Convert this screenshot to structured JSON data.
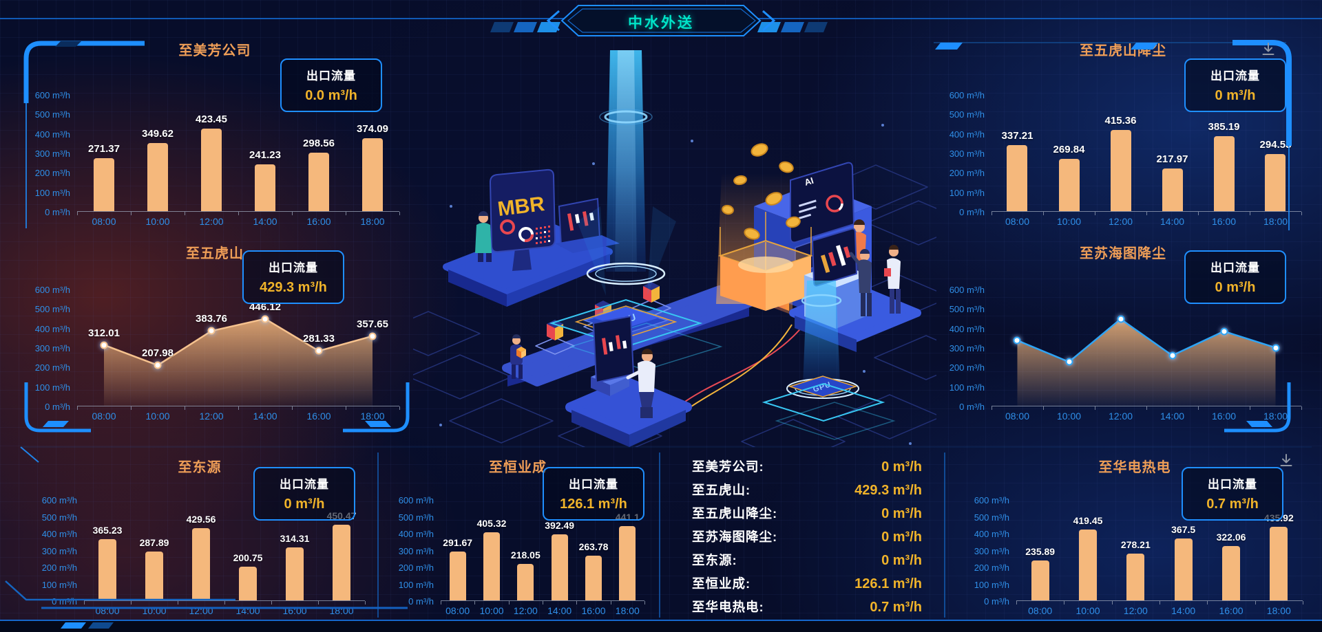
{
  "header": {
    "title": "中水外送"
  },
  "flow_box": {
    "label": "出口流量"
  },
  "axis": {
    "y_ticks": [
      "600 m³/h",
      "500 m³/h",
      "400 m³/h",
      "300 m³/h",
      "200 m³/h",
      "100 m³/h",
      "0 m³/h"
    ],
    "x_ticks": [
      "08:00",
      "10:00",
      "12:00",
      "14:00",
      "16:00",
      "18:00"
    ]
  },
  "colors": {
    "accent_blue": "#1f8fff",
    "axis_blue": "#2f8fe8",
    "bar_orange": "#f5b87c",
    "title_orange": "#ef9e57",
    "value_gold": "#f0b32a",
    "header_cyan": "#00e5c9"
  },
  "chart_data": [
    {
      "id": "meifang",
      "type": "bar",
      "title": "至美芳公司",
      "flow_value": "0.0 m³/h",
      "x": [
        "08:00",
        "10:00",
        "12:00",
        "14:00",
        "16:00",
        "18:00"
      ],
      "values": [
        271.37,
        349.62,
        423.45,
        241.23,
        298.56,
        374.09
      ],
      "ylabel": "m³/h",
      "ylim": [
        0,
        600
      ],
      "labels_shown": true
    },
    {
      "id": "wuhushan",
      "type": "area",
      "title": "至五虎山",
      "flow_value": "429.3 m³/h",
      "x": [
        "08:00",
        "10:00",
        "12:00",
        "14:00",
        "16:00",
        "18:00"
      ],
      "values": [
        312.01,
        207.98,
        383.76,
        446.12,
        281.33,
        357.65
      ],
      "ylabel": "m³/h",
      "ylim": [
        0,
        600
      ],
      "labels_shown": true,
      "line_color": "#f6c28e",
      "fill_color": "#f5b87c"
    },
    {
      "id": "wuhushan_dust",
      "type": "bar",
      "title": "至五虎山降尘",
      "flow_value": "0 m³/h",
      "x": [
        "08:00",
        "10:00",
        "12:00",
        "14:00",
        "16:00",
        "18:00"
      ],
      "values": [
        337.21,
        269.84,
        415.36,
        217.97,
        385.19,
        294.53
      ],
      "ylabel": "m³/h",
      "ylim": [
        0,
        600
      ],
      "labels_shown": true
    },
    {
      "id": "suhaitu_dust",
      "type": "area",
      "title": "至苏海图降尘",
      "flow_value": "0 m³/h",
      "x": [
        "08:00",
        "10:00",
        "12:00",
        "14:00",
        "16:00",
        "18:00"
      ],
      "values": [
        335,
        225,
        445,
        258,
        382,
        298
      ],
      "ylabel": "m³/h",
      "ylim": [
        0,
        600
      ],
      "labels_shown": false,
      "line_color": "#2ea4f5",
      "fill_color": "#f5b87c"
    },
    {
      "id": "dongyuan",
      "type": "bar",
      "title": "至东源",
      "flow_value": "0 m³/h",
      "x": [
        "08:00",
        "10:00",
        "12:00",
        "14:00",
        "16:00",
        "18:00"
      ],
      "values": [
        365.23,
        287.89,
        429.56,
        200.75,
        314.31,
        450.47
      ],
      "ylabel": "m³/h",
      "ylim": [
        0,
        600
      ],
      "labels_shown": true
    },
    {
      "id": "hengyecheng",
      "type": "bar",
      "title": "至恒业成",
      "flow_value": "126.1 m³/h",
      "x": [
        "08:00",
        "10:00",
        "12:00",
        "14:00",
        "16:00",
        "18:00"
      ],
      "values": [
        291.67,
        405.32,
        218.05,
        392.49,
        263.78,
        441.1
      ],
      "ylabel": "m³/h",
      "ylim": [
        0,
        600
      ],
      "labels_shown": true
    },
    {
      "id": "huadian",
      "type": "bar",
      "title": "至华电热电",
      "flow_value": "0.7 m³/h",
      "x": [
        "08:00",
        "10:00",
        "12:00",
        "14:00",
        "16:00",
        "18:00"
      ],
      "values": [
        235.89,
        419.45,
        278.21,
        367.5,
        322.06,
        435.92
      ],
      "ylabel": "m³/h",
      "ylim": [
        0,
        600
      ],
      "labels_shown": true
    }
  ],
  "summary": {
    "rows": [
      {
        "label": "至美芳公司:",
        "value": "0 m³/h"
      },
      {
        "label": "至五虎山:",
        "value": "429.3 m³/h"
      },
      {
        "label": "至五虎山降尘:",
        "value": "0 m³/h"
      },
      {
        "label": "至苏海图降尘:",
        "value": "0 m³/h"
      },
      {
        "label": "至东源:",
        "value": "0 m³/h"
      },
      {
        "label": "至恒业成:",
        "value": "126.1 m³/h"
      },
      {
        "label": "至华电热电:",
        "value": "0.7 m³/h"
      }
    ]
  },
  "illustration": {
    "mbr_label": "MBR",
    "gpu_label": "GPU",
    "ai_label": "AI"
  }
}
